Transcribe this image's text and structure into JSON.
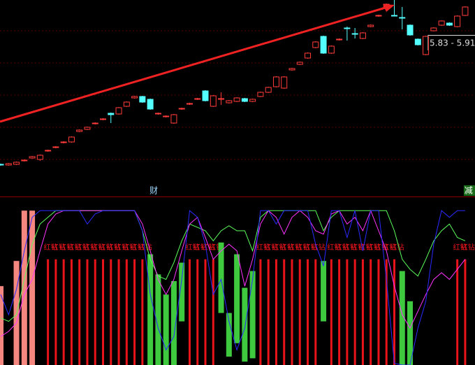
{
  "chart_data": [
    {
      "type": "candlestick",
      "ylim": [
        3.55,
        6.35
      ],
      "up_color": "#ff3b3b",
      "down_color": "#54ffff",
      "price_range_label": "5.83 - 5.91",
      "markers": [
        {
          "index": 19,
          "text": "财"
        },
        {
          "index": 59,
          "text": "减"
        }
      ],
      "ohlc": [
        [
          4.0,
          4.01,
          3.98,
          3.99
        ],
        [
          3.99,
          4.02,
          3.98,
          4.01
        ],
        [
          4.0,
          4.04,
          3.99,
          4.03
        ],
        [
          4.05,
          4.07,
          4.04,
          4.06
        ],
        [
          4.09,
          4.12,
          4.08,
          4.11
        ],
        [
          4.07,
          4.14,
          4.05,
          4.13
        ],
        [
          4.19,
          4.21,
          4.18,
          4.2
        ],
        [
          4.24,
          4.26,
          4.23,
          4.25
        ],
        [
          4.31,
          4.33,
          4.3,
          4.32
        ],
        [
          4.32,
          4.4,
          4.31,
          4.39
        ],
        [
          4.47,
          4.5,
          4.46,
          4.49
        ],
        [
          4.5,
          4.54,
          4.49,
          4.53
        ],
        [
          4.58,
          4.6,
          4.57,
          4.59
        ],
        [
          4.64,
          4.66,
          4.63,
          4.65
        ],
        [
          4.73,
          4.74,
          4.59,
          4.71
        ],
        [
          4.72,
          4.82,
          4.71,
          4.81
        ],
        [
          4.83,
          4.9,
          4.82,
          4.89
        ],
        [
          4.95,
          4.98,
          4.94,
          4.97
        ],
        [
          4.97,
          4.98,
          4.88,
          4.89
        ],
        [
          4.93,
          4.94,
          4.78,
          4.79
        ],
        [
          4.72,
          4.74,
          4.71,
          4.73
        ],
        [
          4.68,
          4.7,
          4.67,
          4.69
        ],
        [
          4.59,
          4.72,
          4.58,
          4.71
        ],
        [
          4.79,
          4.81,
          4.78,
          4.8
        ],
        [
          4.86,
          4.88,
          4.85,
          4.87
        ],
        [
          4.93,
          4.95,
          4.92,
          4.94
        ],
        [
          5.05,
          5.06,
          4.9,
          4.91
        ],
        [
          4.83,
          4.99,
          4.82,
          4.98
        ],
        [
          4.93,
          5.03,
          4.85,
          4.94
        ],
        [
          4.88,
          4.92,
          4.87,
          4.91
        ],
        [
          4.9,
          4.96,
          4.89,
          4.95
        ],
        [
          4.94,
          4.95,
          4.89,
          4.9
        ],
        [
          4.9,
          4.94,
          4.89,
          4.93
        ],
        [
          4.97,
          5.04,
          4.96,
          5.03
        ],
        [
          5.03,
          5.11,
          5.02,
          5.1
        ],
        [
          5.11,
          5.26,
          5.1,
          5.25
        ],
        [
          5.09,
          5.26,
          5.08,
          5.25
        ],
        [
          5.35,
          5.38,
          5.34,
          5.37
        ],
        [
          5.43,
          5.47,
          5.42,
          5.46
        ],
        [
          5.52,
          5.6,
          5.51,
          5.59
        ],
        [
          5.67,
          5.76,
          5.66,
          5.75
        ],
        [
          5.83,
          5.84,
          5.58,
          5.59
        ],
        [
          5.59,
          5.7,
          5.58,
          5.69
        ],
        [
          5.78,
          5.8,
          5.77,
          5.79
        ],
        [
          5.95,
          5.97,
          5.77,
          5.94
        ],
        [
          5.87,
          5.95,
          5.8,
          5.86
        ],
        [
          5.8,
          5.89,
          5.79,
          5.88
        ],
        [
          5.97,
          6.0,
          5.96,
          5.99
        ],
        [
          6.12,
          6.14,
          6.11,
          6.13
        ],
        [
          6.23,
          6.3,
          6.22,
          6.29
        ],
        [
          6.13,
          6.35,
          6.12,
          6.12
        ],
        [
          6.1,
          6.25,
          5.93,
          6.09
        ],
        [
          5.99,
          6.0,
          5.84,
          5.85
        ],
        [
          5.79,
          5.8,
          5.7,
          5.71
        ],
        [
          5.57,
          5.84,
          5.56,
          5.83
        ],
        [
          5.91,
          5.96,
          5.9,
          5.95
        ],
        [
          5.99,
          6.06,
          5.98,
          6.05
        ],
        [
          6.02,
          6.03,
          5.98,
          5.99
        ],
        [
          5.97,
          6.13,
          5.96,
          6.12
        ],
        [
          6.13,
          6.26,
          6.12,
          6.25
        ]
      ]
    },
    {
      "type": "indicator",
      "ylim": [
        0,
        100
      ],
      "bar_label": "红钻",
      "pink_bars": {
        "color": "#f4877f",
        "values": [
          47,
          null,
          62,
          92,
          92,
          null,
          null,
          null,
          null,
          null,
          null,
          null,
          null,
          null,
          null,
          null,
          null,
          null,
          null,
          null,
          null,
          null,
          null,
          null,
          null,
          null,
          null,
          null,
          null,
          null,
          null,
          null,
          null,
          null,
          null,
          null,
          null,
          null,
          null,
          null,
          null,
          null,
          null,
          null,
          null,
          null,
          null,
          null,
          null,
          null,
          null,
          null,
          null,
          null,
          null,
          null,
          null,
          null,
          null,
          null
        ]
      },
      "red_bars": {
        "color": "#e8141a",
        "values": [
          null,
          null,
          null,
          null,
          null,
          null,
          63,
          63,
          63,
          63,
          63,
          63,
          63,
          63,
          63,
          63,
          63,
          63,
          63,
          null,
          null,
          null,
          null,
          null,
          63,
          63,
          63,
          63,
          null,
          null,
          null,
          null,
          null,
          63,
          63,
          63,
          63,
          63,
          63,
          63,
          63,
          null,
          63,
          63,
          63,
          63,
          63,
          63,
          63,
          63,
          63,
          null,
          null,
          null,
          null,
          null,
          null,
          null,
          63,
          63
        ]
      },
      "green_bars": {
        "color": "#3fc93f",
        "low": [
          null,
          null,
          null,
          null,
          null,
          null,
          null,
          null,
          null,
          null,
          null,
          null,
          null,
          null,
          null,
          null,
          null,
          null,
          null,
          0,
          0,
          0,
          0,
          26,
          null,
          null,
          null,
          null,
          31,
          5,
          13,
          2,
          4,
          null,
          null,
          null,
          null,
          null,
          null,
          null,
          null,
          26,
          null,
          null,
          null,
          null,
          null,
          null,
          null,
          null,
          null,
          0,
          0,
          null,
          null,
          null,
          null,
          null,
          null,
          null
        ],
        "high": [
          null,
          null,
          null,
          null,
          null,
          null,
          null,
          null,
          null,
          null,
          null,
          null,
          null,
          null,
          null,
          null,
          null,
          null,
          null,
          66,
          54,
          42,
          50,
          61,
          null,
          null,
          null,
          null,
          73,
          31,
          66,
          46,
          56,
          null,
          null,
          null,
          null,
          null,
          null,
          null,
          null,
          62,
          null,
          null,
          null,
          null,
          null,
          null,
          null,
          null,
          null,
          56,
          38,
          null,
          null,
          null,
          null,
          null,
          null,
          null
        ]
      },
      "lines": [
        {
          "color": "#5cff5c",
          "values": [
            28,
            26,
            30,
            51,
            72,
            84,
            88,
            92,
            92,
            92,
            92,
            92,
            92,
            92,
            92,
            92,
            92,
            92,
            80,
            63,
            53,
            51,
            61,
            74,
            84,
            82,
            80,
            74,
            80,
            83,
            80,
            80,
            68,
            88,
            92,
            92,
            92,
            92,
            92,
            92,
            92,
            80,
            88,
            92,
            92,
            92,
            92,
            92,
            92,
            92,
            80,
            63,
            57,
            53,
            63,
            74,
            80,
            84,
            76,
            74
          ]
        },
        {
          "color": "#ff33ff",
          "values": [
            17,
            20,
            25,
            42,
            51,
            68,
            84,
            90,
            92,
            92,
            92,
            92,
            92,
            92,
            92,
            92,
            92,
            92,
            84,
            68,
            51,
            42,
            51,
            68,
            84,
            88,
            76,
            63,
            68,
            72,
            68,
            47,
            63,
            84,
            92,
            88,
            78,
            88,
            92,
            88,
            80,
            78,
            90,
            92,
            84,
            88,
            80,
            92,
            80,
            68,
            47,
            30,
            22,
            32,
            42,
            51,
            55,
            51,
            57,
            63
          ]
        },
        {
          "color": "#2a2aff",
          "values": [
            42,
            30,
            45,
            68,
            88,
            92,
            92,
            92,
            92,
            92,
            92,
            84,
            90,
            92,
            92,
            92,
            92,
            92,
            80,
            42,
            22,
            9,
            17,
            51,
            92,
            88,
            72,
            42,
            51,
            26,
            9,
            22,
            51,
            92,
            92,
            84,
            92,
            92,
            92,
            92,
            72,
            59,
            92,
            92,
            76,
            92,
            68,
            92,
            92,
            51,
            1,
            0,
            0,
            22,
            38,
            72,
            92,
            88,
            92,
            92
          ]
        }
      ]
    }
  ]
}
